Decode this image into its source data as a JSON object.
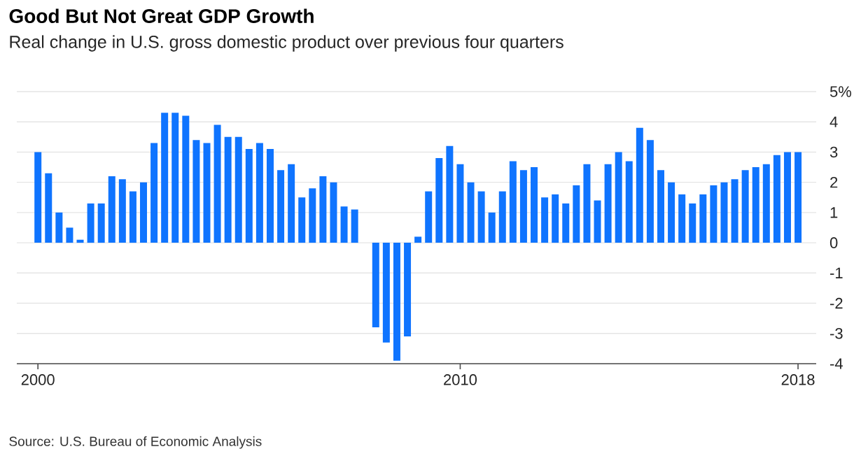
{
  "chart_data": {
    "type": "bar",
    "title": "Good But Not Great GDP Growth",
    "subtitle": "Real change in U.S. gross domestic product over previous four quarters",
    "annotations": [
      "Source: U.S. Bureau of Economic Analysis"
    ],
    "x": [
      2000,
      2000.25,
      2000.5,
      2000.75,
      2001,
      2001.25,
      2001.5,
      2001.75,
      2002,
      2002.25,
      2002.5,
      2002.75,
      2003,
      2003.25,
      2003.5,
      2003.75,
      2004,
      2004.25,
      2004.5,
      2004.75,
      2005,
      2005.25,
      2005.5,
      2005.75,
      2006,
      2006.25,
      2006.5,
      2006.75,
      2007,
      2007.25,
      2007.5,
      2007.75,
      2008,
      2008.25,
      2008.5,
      2008.75,
      2009,
      2009.25,
      2009.5,
      2009.75,
      2010,
      2010.25,
      2010.5,
      2010.75,
      2011,
      2011.25,
      2011.5,
      2011.75,
      2012,
      2012.25,
      2012.5,
      2012.75,
      2013,
      2013.25,
      2013.5,
      2013.75,
      2014,
      2014.25,
      2014.5,
      2014.75,
      2015,
      2015.25,
      2015.5,
      2015.75,
      2016,
      2016.25,
      2016.5,
      2016.75,
      2017,
      2017.25,
      2017.5,
      2017.75,
      2018
    ],
    "values": [
      3.0,
      2.3,
      1.0,
      0.5,
      0.1,
      1.3,
      1.3,
      2.2,
      2.1,
      1.7,
      2.0,
      3.3,
      4.3,
      4.3,
      4.2,
      3.4,
      3.3,
      3.9,
      3.5,
      3.5,
      3.1,
      3.3,
      3.1,
      2.4,
      2.6,
      1.5,
      1.8,
      2.2,
      2.0,
      1.2,
      1.1,
      0.0,
      -2.8,
      -3.3,
      -3.9,
      -3.1,
      0.2,
      1.7,
      2.8,
      3.2,
      2.6,
      2.0,
      1.7,
      1.0,
      1.7,
      2.7,
      2.4,
      2.5,
      1.5,
      1.6,
      1.3,
      1.9,
      2.6,
      1.4,
      2.6,
      3.0,
      2.7,
      3.8,
      3.4,
      2.4,
      2.0,
      1.6,
      1.3,
      1.6,
      1.9,
      2.0,
      2.1,
      2.4,
      2.5,
      2.6,
      2.9,
      3.0,
      3.0
    ],
    "color": "#0f74ff",
    "xlim": [
      1999.5,
      2018.43
    ],
    "xticks": [
      2000,
      2010,
      2018
    ],
    "ylim": [
      -4,
      5
    ],
    "yticks": [
      -4,
      -3,
      -2,
      -1,
      0,
      1,
      2,
      3,
      4,
      {
        "value": 5,
        "label": "5%"
      }
    ],
    "grid": "y"
  }
}
